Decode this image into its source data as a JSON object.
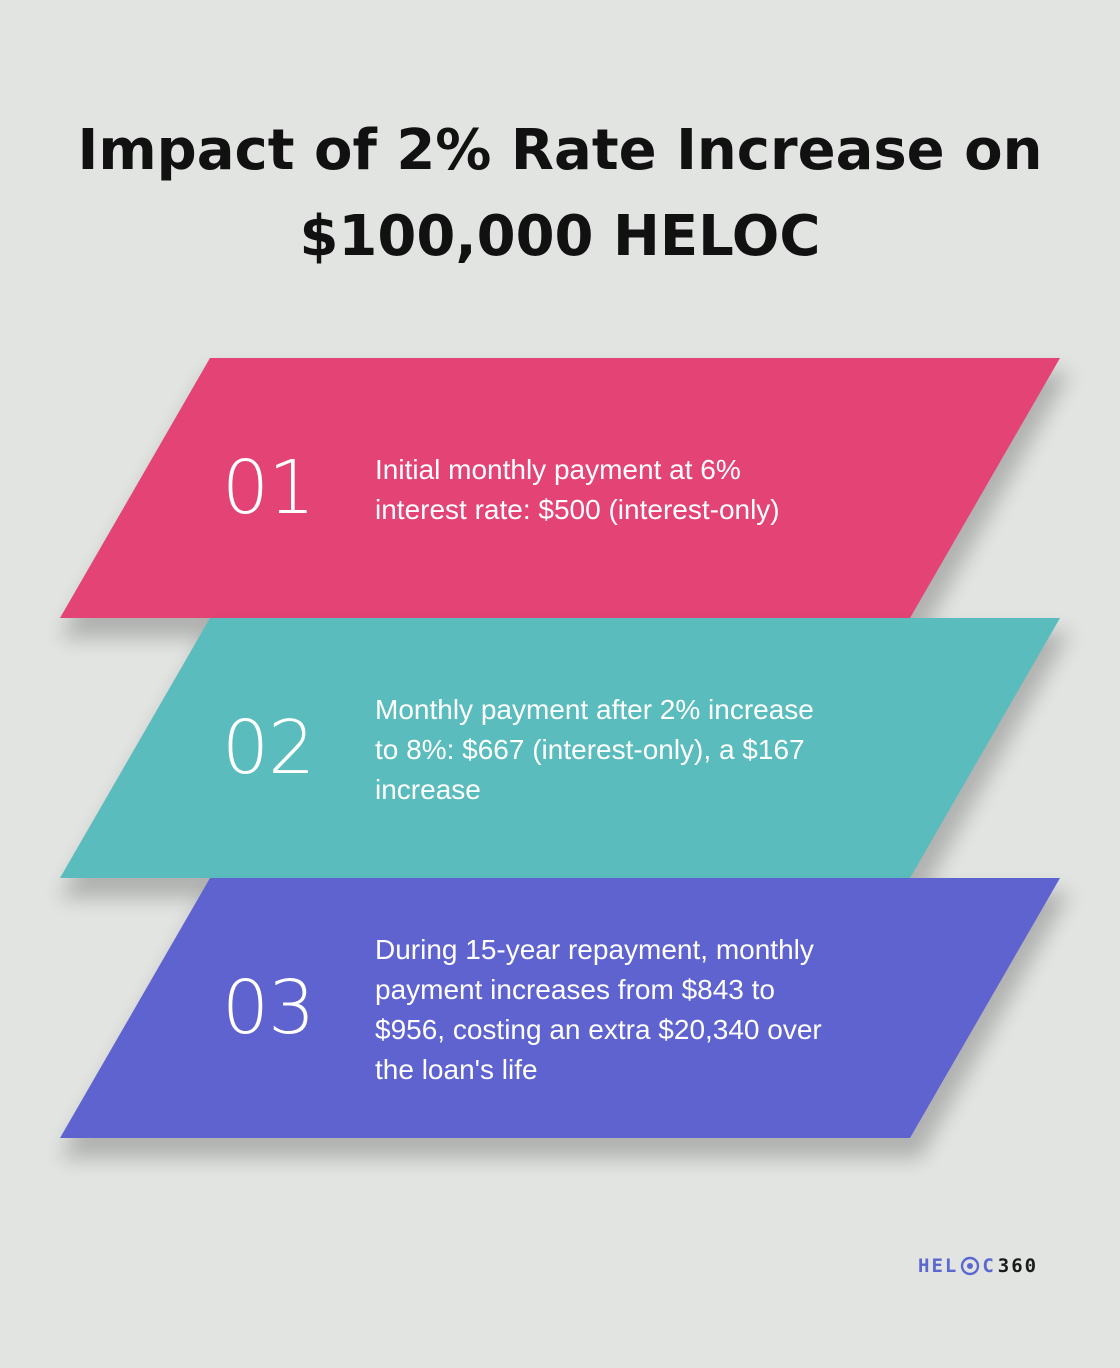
{
  "title": {
    "line1": "Impact of 2% Rate Increase on",
    "line2": "$100,000 HELOC"
  },
  "steps": [
    {
      "number": "01",
      "color": "#e34375",
      "lines": [
        "Initial monthly payment at 6%",
        "interest rate: $500 (interest-only)"
      ]
    },
    {
      "number": "02",
      "color": "#5bbcbe",
      "lines": [
        "Monthly payment after 2% increase",
        "to 8%: $667 (interest-only), a $167",
        "increase"
      ]
    },
    {
      "number": "03",
      "color": "#5f63cf",
      "lines": [
        "During 15-year repayment, monthly",
        "payment increases from $843 to",
        "$956, costing an extra $20,340 over",
        "the loan's life"
      ]
    }
  ],
  "logo": {
    "part1": "HEL",
    "part2": "C",
    "part3": "360",
    "icon": "target-icon",
    "colors": {
      "brand": "#5b68cf",
      "digits": "#1b1b1b"
    }
  }
}
